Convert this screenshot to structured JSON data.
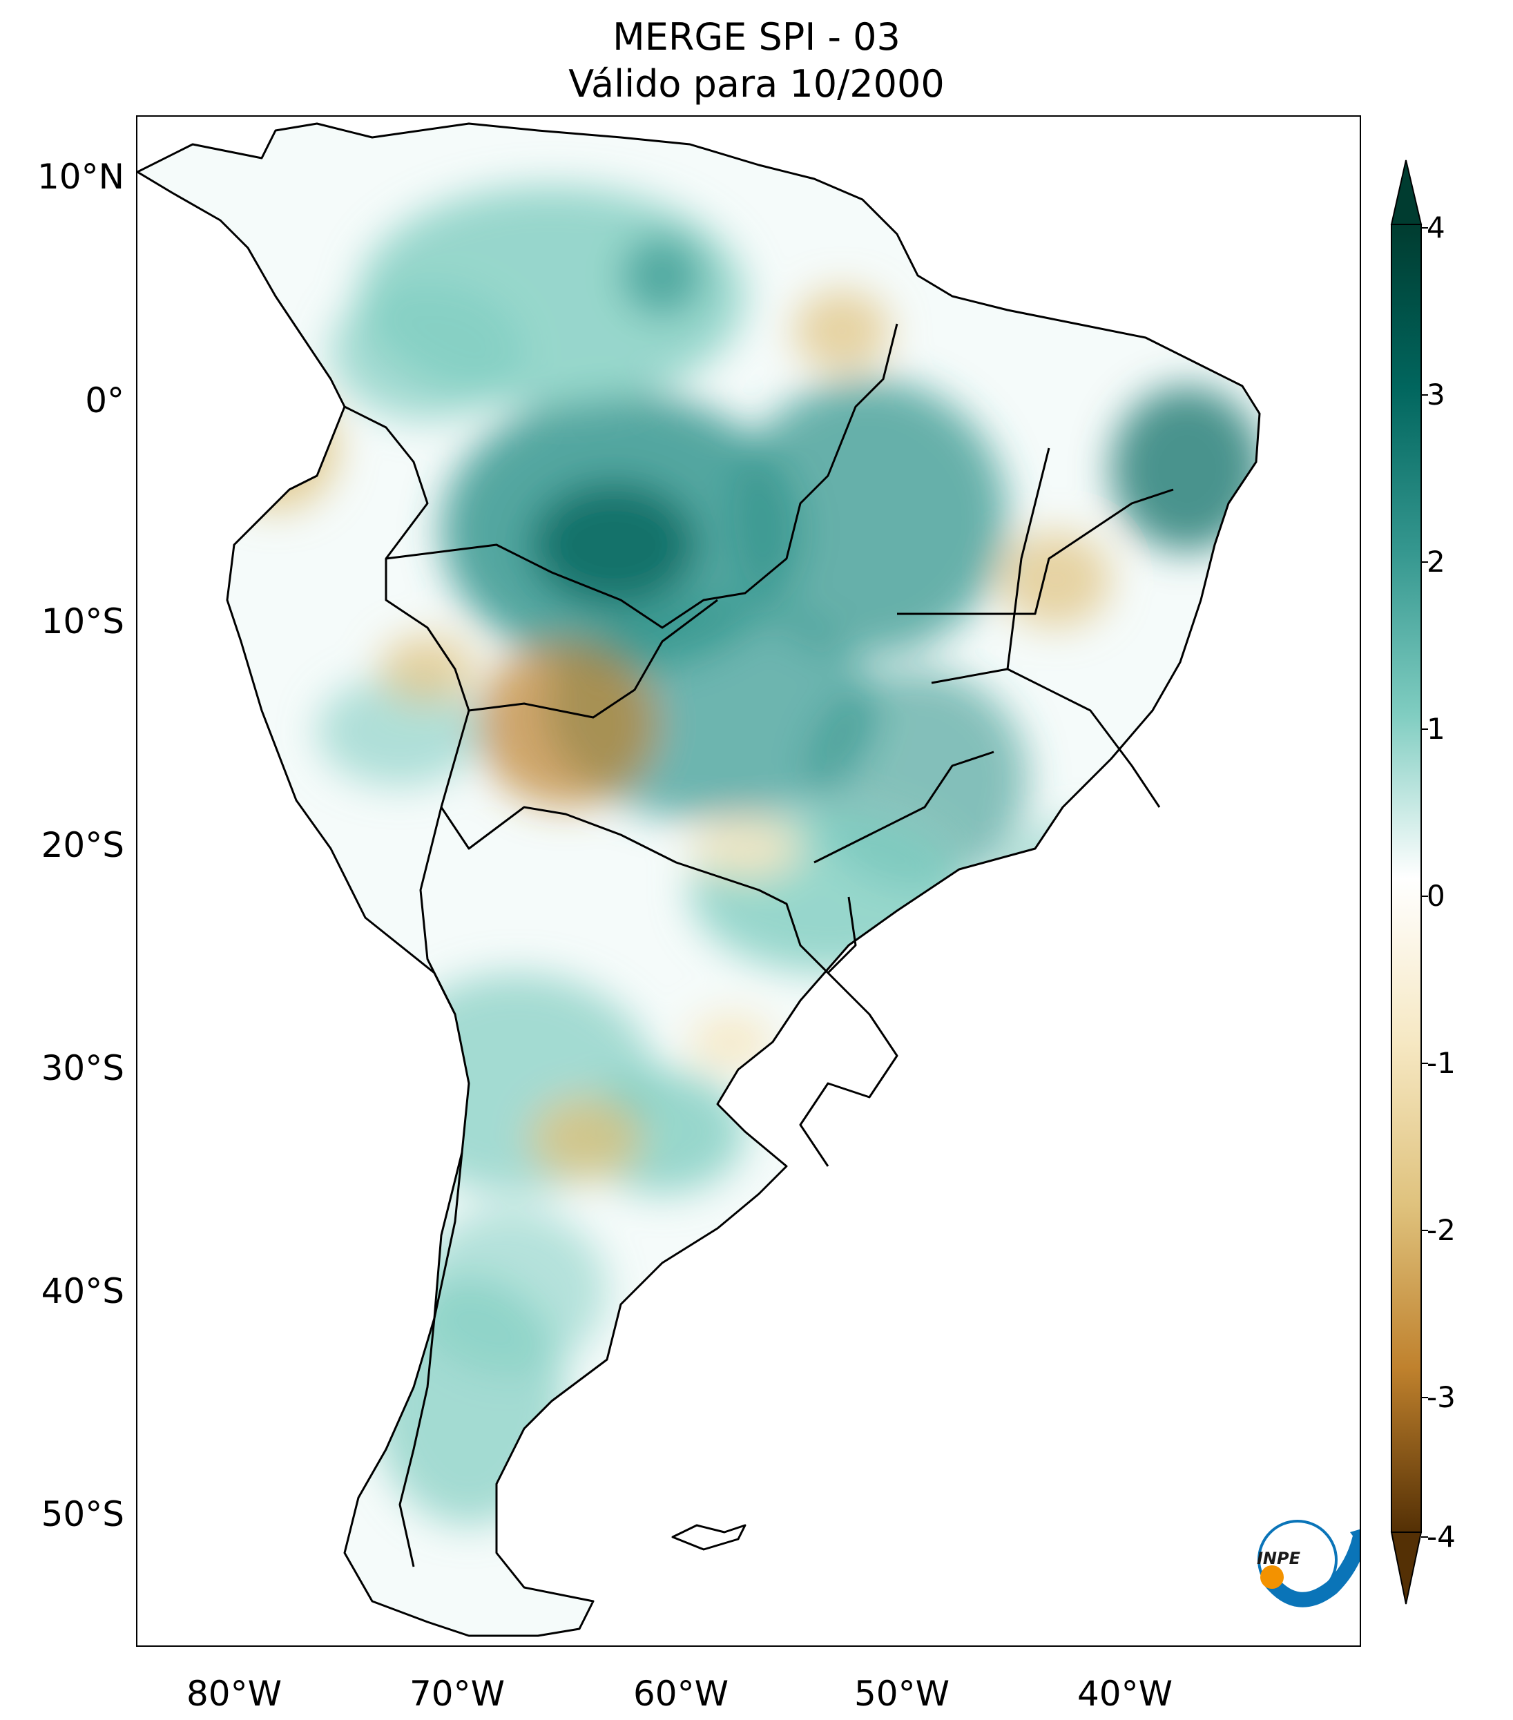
{
  "title": {
    "line1": "MERGE   SPI - 03",
    "line2": "Válido para 10/2000"
  },
  "latitude_labels": [
    "10°N",
    "0°",
    "10°S",
    "20°S",
    "30°S",
    "40°S",
    "50°S"
  ],
  "longitude_labels": [
    "80°W",
    "70°W",
    "60°W",
    "50°W",
    "40°W"
  ],
  "colorbar": {
    "ticks": [
      "4",
      "3",
      "2",
      "1",
      "0",
      "-1",
      "-2",
      "-3",
      "-4"
    ],
    "colors": {
      "pos4": "#003c30",
      "pos3": "#01665e",
      "pos2": "#35978f",
      "pos1": "#80cdc1",
      "zero": "#ffffff",
      "neg1": "#f6e8c3",
      "neg2": "#dfc27d",
      "neg3": "#bf812d",
      "neg4": "#543005"
    }
  },
  "logo": {
    "text": "INPE"
  },
  "colors": {
    "coastline": "#000000",
    "frame": "#000000",
    "logo_blue": "#0a74b8",
    "logo_orange": "#f39200"
  }
}
